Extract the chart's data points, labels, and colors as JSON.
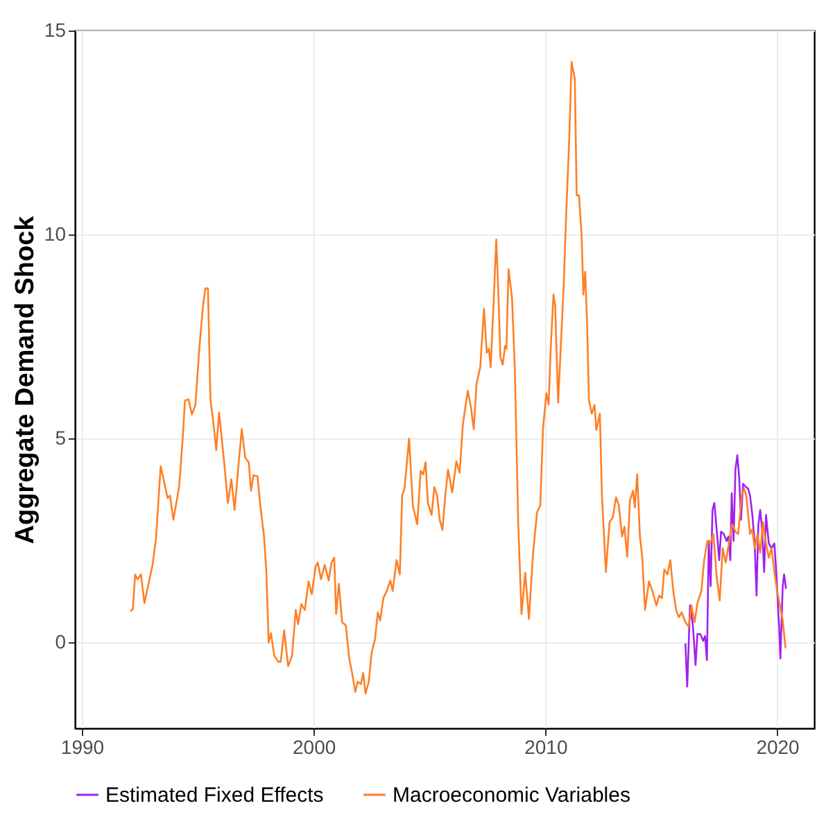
{
  "chart_data": {
    "type": "line",
    "ylabel": "Aggregate Demand Shock",
    "xlim": [
      1989.7,
      2021.6
    ],
    "xticks": [
      1990,
      2000,
      2010,
      2020
    ],
    "ylim": [
      -2.1,
      15
    ],
    "yticks": [
      0,
      5,
      10,
      15
    ],
    "grid": true,
    "legend": "bottom",
    "line_style": "solid",
    "marker": "none",
    "series": [
      {
        "name": "Estimated Fixed Effects",
        "color": "#a020f0",
        "x": [
          2016.04,
          2016.12,
          2016.24,
          2016.36,
          2016.48,
          2016.56,
          2016.68,
          2016.81,
          2016.89,
          2016.97,
          2017.05,
          2017.13,
          2017.21,
          2017.29,
          2017.38,
          2017.5,
          2017.58,
          2017.7,
          2017.82,
          2017.9,
          2017.98,
          2018.04,
          2018.12,
          2018.2,
          2018.28,
          2018.36,
          2018.44,
          2018.53,
          2018.62,
          2018.75,
          2018.83,
          2018.93,
          2019.03,
          2019.11,
          2019.19,
          2019.27,
          2019.35,
          2019.44,
          2019.52,
          2019.64,
          2019.76,
          2019.88,
          2019.96,
          2020.08,
          2020.14,
          2020.24,
          2020.3,
          2020.38
        ],
        "values": [
          -0.02,
          -1.08,
          0.91,
          0.45,
          -0.55,
          0.21,
          0.21,
          0.04,
          0.16,
          -0.43,
          2.49,
          1.38,
          3.25,
          3.42,
          2.84,
          2.02,
          2.72,
          2.66,
          2.49,
          2.6,
          2.02,
          3.66,
          2.49,
          4.24,
          4.59,
          4.07,
          3.01,
          3.89,
          3.83,
          3.77,
          3.6,
          3.13,
          2.43,
          1.15,
          2.9,
          3.25,
          2.78,
          1.73,
          3.13,
          2.43,
          2.31,
          2.43,
          1.73,
          0.45,
          -0.39,
          1.38,
          1.67,
          1.32
        ]
      },
      {
        "name": "Macroeconomic Variables",
        "color": "#ff7f24",
        "x": [
          1992.1,
          1992.2,
          1992.3,
          1992.4,
          1992.55,
          1992.7,
          1992.9,
          1993.05,
          1993.2,
          1993.4,
          1993.5,
          1993.7,
          1993.8,
          1993.95,
          1994.2,
          1994.35,
          1994.45,
          1994.6,
          1994.75,
          1994.9,
          1995.07,
          1995.23,
          1995.33,
          1995.44,
          1995.55,
          1995.68,
          1995.8,
          1995.92,
          1996.14,
          1996.3,
          1996.45,
          1996.59,
          1996.77,
          1996.9,
          1997.05,
          1997.2,
          1997.3,
          1997.4,
          1997.58,
          1997.7,
          1997.86,
          1997.96,
          1998.06,
          1998.16,
          1998.3,
          1998.47,
          1998.58,
          1998.73,
          1998.9,
          1999.07,
          1999.23,
          1999.33,
          1999.47,
          1999.62,
          1999.78,
          1999.92,
          2000.08,
          2000.18,
          2000.32,
          2000.48,
          2000.65,
          2000.77,
          2000.89,
          2000.97,
          2001.09,
          2001.23,
          2001.39,
          2001.53,
          2001.65,
          2001.8,
          2001.9,
          2002.04,
          2002.14,
          2002.24,
          2002.38,
          2002.5,
          2002.65,
          2002.77,
          2002.87,
          2003.01,
          2003.15,
          2003.31,
          2003.41,
          2003.58,
          2003.72,
          2003.82,
          2003.92,
          2004.12,
          2004.28,
          2004.47,
          2004.62,
          2004.73,
          2004.83,
          2004.93,
          2005.09,
          2005.21,
          2005.33,
          2005.44,
          2005.56,
          2005.68,
          2005.8,
          2005.98,
          2006.16,
          2006.3,
          2006.44,
          2006.65,
          2006.79,
          2006.91,
          2007.03,
          2007.19,
          2007.35,
          2007.47,
          2007.56,
          2007.64,
          2007.78,
          2007.88,
          2007.96,
          2008.06,
          2008.16,
          2008.26,
          2008.32,
          2008.41,
          2008.56,
          2008.68,
          2008.83,
          2008.97,
          2009.13,
          2009.29,
          2009.47,
          2009.64,
          2009.78,
          2009.9,
          2010.04,
          2010.14,
          2010.23,
          2010.35,
          2010.42,
          2010.55,
          2010.79,
          2010.89,
          2011.03,
          2011.13,
          2011.27,
          2011.35,
          2011.45,
          2011.56,
          2011.64,
          2011.72,
          2011.8,
          2011.88,
          2012.0,
          2012.12,
          2012.2,
          2012.35,
          2012.44,
          2012.61,
          2012.77,
          2012.91,
          2013.05,
          2013.17,
          2013.31,
          2013.41,
          2013.53,
          2013.65,
          2013.78,
          2013.86,
          2013.96,
          2014.08,
          2014.18,
          2014.3,
          2014.47,
          2014.62,
          2014.79,
          2014.91,
          2015.03,
          2015.13,
          2015.27,
          2015.39,
          2015.52,
          2015.64,
          2015.76,
          2015.88,
          2016.04,
          2016.18,
          2016.3,
          2016.44,
          2016.56,
          2016.73,
          2016.85,
          2016.99,
          2017.11,
          2017.25,
          2017.39,
          2017.52,
          2017.65,
          2017.78,
          2017.92,
          2018.06,
          2018.2,
          2018.32,
          2018.47,
          2018.57,
          2018.67,
          2018.83,
          2018.93,
          2019.03,
          2019.15,
          2019.27,
          2019.39,
          2019.52,
          2019.64,
          2019.76,
          2019.88,
          2020.0,
          2020.12,
          2020.24,
          2020.36
        ],
        "values": [
          0.77,
          0.82,
          1.67,
          1.55,
          1.67,
          0.97,
          1.5,
          1.9,
          2.55,
          4.32,
          4.07,
          3.54,
          3.6,
          3.01,
          3.83,
          5.0,
          5.93,
          5.96,
          5.59,
          5.82,
          7.22,
          8.27,
          8.68,
          8.68,
          5.93,
          5.37,
          4.71,
          5.64,
          4.42,
          3.42,
          4.0,
          3.25,
          4.42,
          5.23,
          4.53,
          4.42,
          3.72,
          4.1,
          4.07,
          3.36,
          2.6,
          1.73,
          0,
          0.23,
          -0.32,
          -0.47,
          -0.47,
          0.3,
          -0.58,
          -0.32,
          0.8,
          0.45,
          0.94,
          0.8,
          1.5,
          1.18,
          1.85,
          1.96,
          1.55,
          1.9,
          1.52,
          1.96,
          2.08,
          0.7,
          1.44,
          0.5,
          0.42,
          -0.37,
          -0.72,
          -1.21,
          -0.96,
          -1.02,
          -0.75,
          -1.25,
          -0.96,
          -0.26,
          0.09,
          0.74,
          0.54,
          1.09,
          1.26,
          1.52,
          1.26,
          2.02,
          1.67,
          3.6,
          3.77,
          5.0,
          3.36,
          2.9,
          4.21,
          4.12,
          4.42,
          3.42,
          3.13,
          3.81,
          3.6,
          3.01,
          2.76,
          3.6,
          4.24,
          3.68,
          4.44,
          4.16,
          5.35,
          6.17,
          5.76,
          5.23,
          6.34,
          6.75,
          8.18,
          7.1,
          7.2,
          6.75,
          8.51,
          9.88,
          8.74,
          6.99,
          6.81,
          7.27,
          7.2,
          9.15,
          8.45,
          6.75,
          2.9,
          0.7,
          1.71,
          0.58,
          2.2,
          3.19,
          3.36,
          5.26,
          6.11,
          5.84,
          7.22,
          8.53,
          8.27,
          5.88,
          8.74,
          10.38,
          12.36,
          14.23,
          13.82,
          10.96,
          10.96,
          10.02,
          8.53,
          9.09,
          7.8,
          5.93,
          5.61,
          5.82,
          5.21,
          5.61,
          3.6,
          1.73,
          2.95,
          3.07,
          3.56,
          3.36,
          2.6,
          2.84,
          2.1,
          3.48,
          3.72,
          3.31,
          4.12,
          2.6,
          2.08,
          0.8,
          1.5,
          1.26,
          0.91,
          1.15,
          1.09,
          1.79,
          1.67,
          2.02,
          1.26,
          0.8,
          0.62,
          0.74,
          0.5,
          0.39,
          0.91,
          0.5,
          0.97,
          1.26,
          2.02,
          2.49,
          2.43,
          2.66,
          1.61,
          1.03,
          2.31,
          1.96,
          2.43,
          2.9,
          2.72,
          2.66,
          3.6,
          3.77,
          3.6,
          2.66,
          2.78,
          2.31,
          2.66,
          2.2,
          2.95,
          2.43,
          2.08,
          2.31,
          1.73,
          1.26,
          0.91,
          0.55,
          -0.14
        ]
      }
    ]
  }
}
